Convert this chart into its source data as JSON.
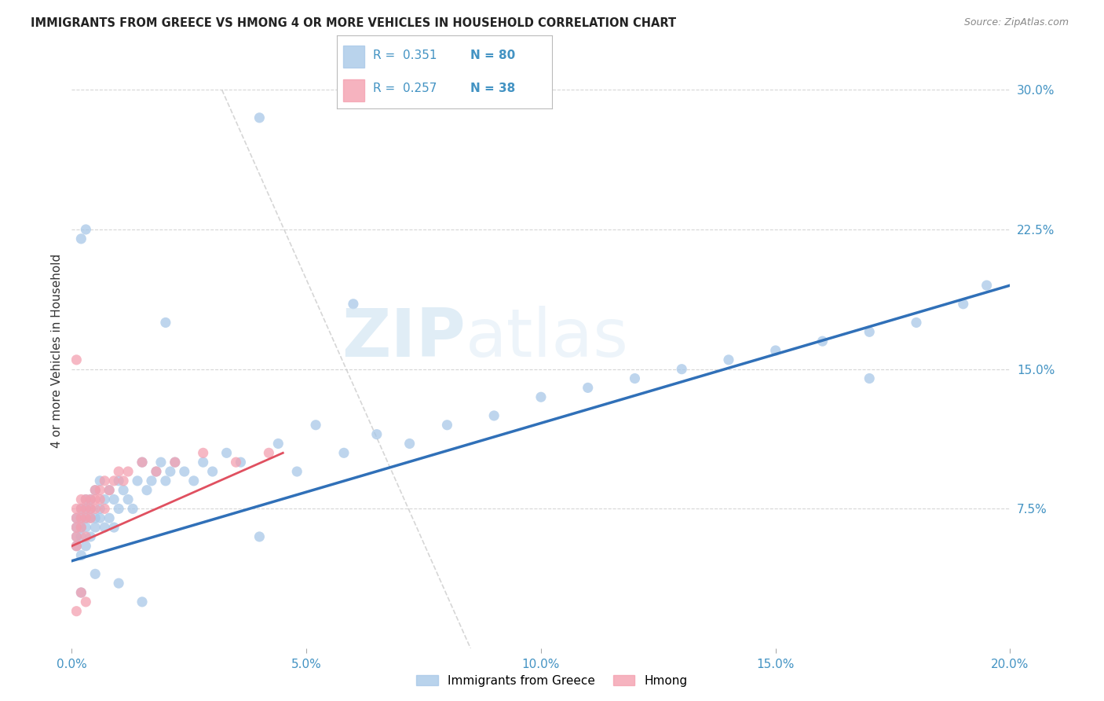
{
  "title": "IMMIGRANTS FROM GREECE VS HMONG 4 OR MORE VEHICLES IN HOUSEHOLD CORRELATION CHART",
  "source": "Source: ZipAtlas.com",
  "ylabel": "4 or more Vehicles in Household",
  "legend_label_1": "Immigrants from Greece",
  "legend_label_2": "Hmong",
  "R1": 0.351,
  "N1": 80,
  "R2": 0.257,
  "N2": 38,
  "color_greece": "#a8c8e8",
  "color_hmong": "#f4a0b0",
  "color_line_greece": "#3070b8",
  "color_line_hmong": "#e05060",
  "xlim": [
    0.0,
    0.2
  ],
  "ylim": [
    0.0,
    0.32
  ],
  "xticks": [
    0.0,
    0.05,
    0.1,
    0.15,
    0.2
  ],
  "xtick_labels": [
    "0.0%",
    "5.0%",
    "10.0%",
    "15.0%",
    "20.0%"
  ],
  "yticks_right": [
    0.075,
    0.15,
    0.225,
    0.3
  ],
  "ytick_labels_right": [
    "7.5%",
    "15.0%",
    "22.5%",
    "30.0%"
  ],
  "background_color": "#ffffff",
  "grid_color": "#cccccc",
  "axis_color": "#4393c3",
  "watermark": "ZIPatlas",
  "greece_line_x": [
    0.0,
    0.2
  ],
  "greece_line_y": [
    0.047,
    0.195
  ],
  "hmong_line_x": [
    0.0,
    0.045
  ],
  "hmong_line_y": [
    0.055,
    0.105
  ],
  "diag_line_x": [
    0.032,
    0.085
  ],
  "diag_line_y": [
    0.3,
    0.0
  ],
  "greece_x": [
    0.001,
    0.001,
    0.001,
    0.001,
    0.002,
    0.002,
    0.002,
    0.002,
    0.002,
    0.003,
    0.003,
    0.003,
    0.003,
    0.003,
    0.004,
    0.004,
    0.004,
    0.004,
    0.005,
    0.005,
    0.005,
    0.006,
    0.006,
    0.006,
    0.007,
    0.007,
    0.008,
    0.008,
    0.009,
    0.009,
    0.01,
    0.01,
    0.011,
    0.012,
    0.013,
    0.014,
    0.015,
    0.016,
    0.017,
    0.018,
    0.019,
    0.02,
    0.021,
    0.022,
    0.024,
    0.026,
    0.028,
    0.03,
    0.033,
    0.036,
    0.04,
    0.044,
    0.048,
    0.052,
    0.058,
    0.065,
    0.072,
    0.08,
    0.09,
    0.1,
    0.11,
    0.12,
    0.13,
    0.14,
    0.15,
    0.16,
    0.17,
    0.18,
    0.19,
    0.195,
    0.002,
    0.003,
    0.02,
    0.06,
    0.17,
    0.04,
    0.002,
    0.005,
    0.01,
    0.015
  ],
  "greece_y": [
    0.065,
    0.07,
    0.055,
    0.06,
    0.07,
    0.075,
    0.06,
    0.065,
    0.05,
    0.075,
    0.08,
    0.065,
    0.07,
    0.055,
    0.08,
    0.07,
    0.075,
    0.06,
    0.085,
    0.07,
    0.065,
    0.09,
    0.075,
    0.07,
    0.08,
    0.065,
    0.085,
    0.07,
    0.08,
    0.065,
    0.09,
    0.075,
    0.085,
    0.08,
    0.075,
    0.09,
    0.1,
    0.085,
    0.09,
    0.095,
    0.1,
    0.09,
    0.095,
    0.1,
    0.095,
    0.09,
    0.1,
    0.095,
    0.105,
    0.1,
    0.06,
    0.11,
    0.095,
    0.12,
    0.105,
    0.115,
    0.11,
    0.12,
    0.125,
    0.135,
    0.14,
    0.145,
    0.15,
    0.155,
    0.16,
    0.165,
    0.17,
    0.175,
    0.185,
    0.195,
    0.22,
    0.225,
    0.175,
    0.185,
    0.145,
    0.285,
    0.03,
    0.04,
    0.035,
    0.025
  ],
  "hmong_x": [
    0.001,
    0.001,
    0.001,
    0.001,
    0.001,
    0.002,
    0.002,
    0.002,
    0.002,
    0.003,
    0.003,
    0.003,
    0.003,
    0.004,
    0.004,
    0.004,
    0.005,
    0.005,
    0.005,
    0.006,
    0.006,
    0.007,
    0.007,
    0.008,
    0.009,
    0.01,
    0.011,
    0.012,
    0.015,
    0.018,
    0.022,
    0.028,
    0.035,
    0.042,
    0.001,
    0.002,
    0.003,
    0.001
  ],
  "hmong_y": [
    0.065,
    0.07,
    0.06,
    0.075,
    0.055,
    0.07,
    0.075,
    0.08,
    0.065,
    0.075,
    0.08,
    0.07,
    0.06,
    0.08,
    0.075,
    0.07,
    0.085,
    0.08,
    0.075,
    0.085,
    0.08,
    0.09,
    0.075,
    0.085,
    0.09,
    0.095,
    0.09,
    0.095,
    0.1,
    0.095,
    0.1,
    0.105,
    0.1,
    0.105,
    0.155,
    0.03,
    0.025,
    0.02
  ]
}
